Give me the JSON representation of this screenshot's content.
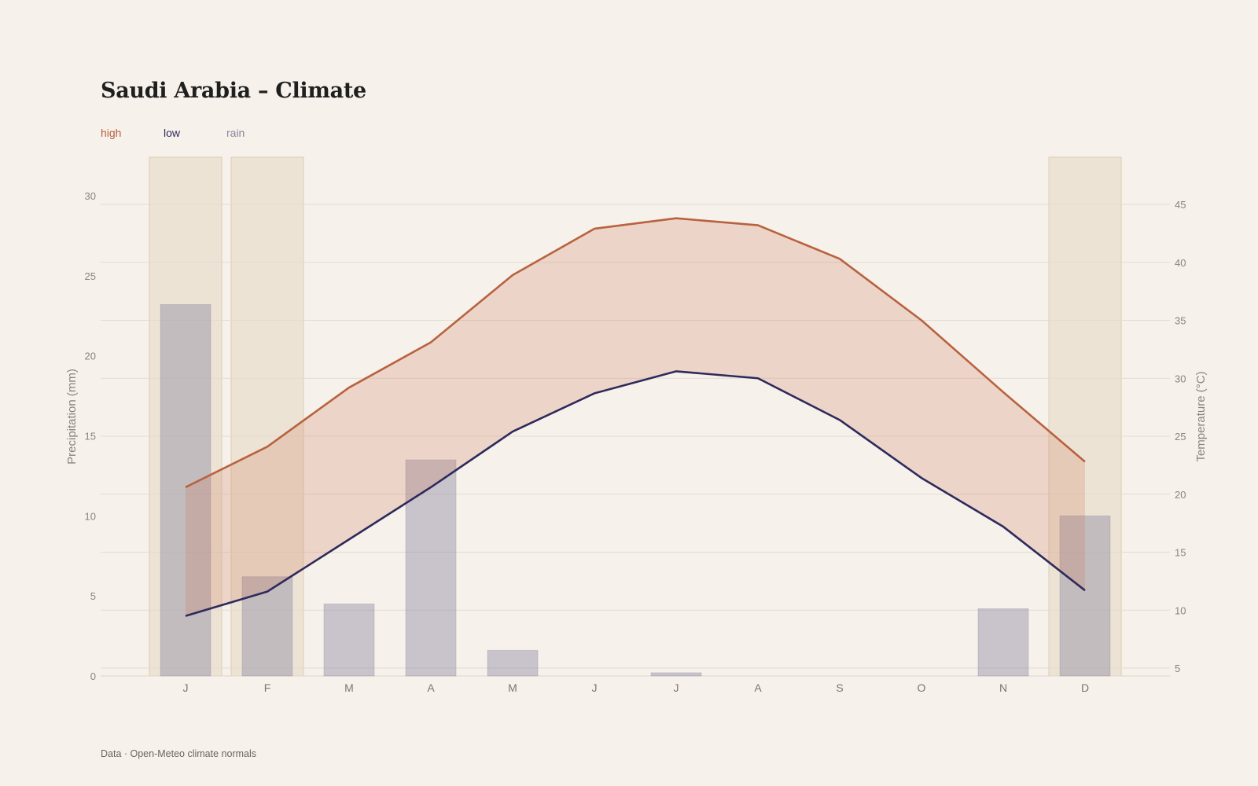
{
  "title": "Saudi Arabia – Climate",
  "footer": "Data · Open-Meteo climate normals",
  "legend": [
    {
      "label": "high",
      "color": "#b8623f"
    },
    {
      "label": "low",
      "color": "#2e2a5c"
    },
    {
      "label": "rain",
      "color": "#8a86a0"
    }
  ],
  "chart_data": {
    "type": "line",
    "categories": [
      "J",
      "F",
      "M",
      "A",
      "M",
      "J",
      "J",
      "A",
      "S",
      "O",
      "N",
      "D"
    ],
    "series": [
      {
        "name": "high",
        "axis": "right",
        "color": "#b8623f",
        "values": [
          20.6,
          24.1,
          29.2,
          33.1,
          38.9,
          42.9,
          43.8,
          43.2,
          40.3,
          35.0,
          28.8,
          22.8
        ]
      },
      {
        "name": "low",
        "axis": "right",
        "color": "#2e2a5c",
        "values": [
          9.5,
          11.6,
          16.1,
          20.6,
          25.4,
          28.7,
          30.6,
          30.0,
          26.4,
          21.4,
          17.2,
          11.7
        ]
      },
      {
        "name": "rain",
        "axis": "left",
        "type": "bar",
        "color": "#8a86a0",
        "values": [
          23.2,
          6.2,
          4.5,
          13.5,
          1.6,
          0,
          0.2,
          0,
          0,
          0,
          4.2,
          10.0
        ]
      }
    ],
    "highlighted_months": [
      0,
      1,
      11
    ],
    "ylabel_left": "Precipitation (mm)",
    "ylabel_right": "Temperature (°C)",
    "ylim_left": [
      0,
      30
    ],
    "yticks_left": [
      0,
      5,
      10,
      15,
      20,
      25,
      30
    ],
    "ylim_right": [
      5,
      45
    ],
    "yticks_right": [
      5,
      10,
      15,
      20,
      25,
      30,
      35,
      40,
      45
    ],
    "grid": true,
    "legend_position": "top-left"
  }
}
